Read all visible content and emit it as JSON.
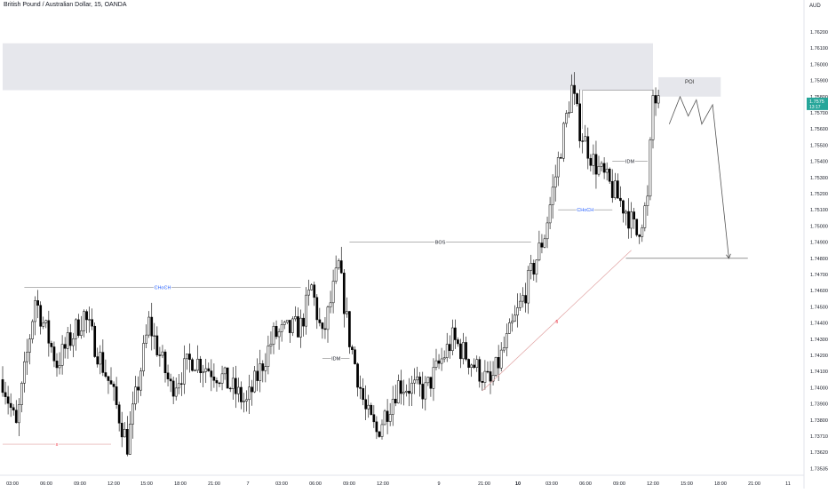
{
  "header": {
    "title": "British Pound / Australian Dollar, 15, OANDA",
    "currency": "AUD"
  },
  "colors": {
    "background": "#ffffff",
    "candle": "#000000",
    "zone": "#e6e7ec",
    "axis_text": "#131722",
    "structure_line": "#888888",
    "choch_label": "#2962ff",
    "fib_line": "#e0a0a0",
    "fib_label": "#f23645",
    "price_tag": "#26a69a",
    "arrow": "#555555"
  },
  "chart_data": {
    "type": "candlestick",
    "symbol": "British Pound / Australian Dollar",
    "timeframe": "15",
    "exchange": "OANDA",
    "ylabel": "AUD",
    "ylim": [
      1.735,
      1.763
    ],
    "y_ticks": [
      "1.76200",
      "1.76100",
      "1.76000",
      "1.75900",
      "1.75800",
      "1.75700",
      "1.75600",
      "1.75500",
      "1.75400",
      "1.75300",
      "1.75200",
      "1.75100",
      "1.75000",
      "1.74900",
      "1.74800",
      "1.74700",
      "1.74600",
      "1.74500",
      "1.74400",
      "1.74300",
      "1.74200",
      "1.74100",
      "1.74000",
      "1.73900",
      "1.73800",
      "1.73710",
      "1.73620",
      "1.73535"
    ],
    "x_ticks": [
      "03:00",
      "06:00",
      "09:00",
      "12:00",
      "15:00",
      "18:00",
      "21:00",
      "7",
      "03:00",
      "06:00",
      "09:00",
      "12:00",
      "9",
      "21:00",
      "10",
      "03:00",
      "06:00",
      "09:00",
      "12:00",
      "15:00",
      "18:00",
      "21:00",
      "11"
    ],
    "x_ticks_bold": [
      false,
      false,
      false,
      false,
      false,
      false,
      false,
      false,
      false,
      false,
      false,
      false,
      false,
      false,
      true,
      false,
      false,
      false,
      false,
      false,
      false,
      false,
      false
    ],
    "current_price_tag": [
      "1.7575",
      "13:17"
    ],
    "anchors": [
      [
        0,
        1.7405
      ],
      [
        5,
        1.7375
      ],
      [
        12,
        1.7455
      ],
      [
        20,
        1.7415
      ],
      [
        30,
        1.7445
      ],
      [
        40,
        1.74
      ],
      [
        46,
        1.7365
      ],
      [
        54,
        1.744
      ],
      [
        62,
        1.74
      ],
      [
        70,
        1.7418
      ],
      [
        80,
        1.7408
      ],
      [
        90,
        1.739
      ],
      [
        100,
        1.7432
      ],
      [
        110,
        1.7438
      ],
      [
        114,
        1.7462
      ],
      [
        118,
        1.743
      ],
      [
        124,
        1.7475
      ],
      [
        128,
        1.743
      ],
      [
        134,
        1.7385
      ],
      [
        138,
        1.7372
      ],
      [
        146,
        1.7402
      ],
      [
        156,
        1.7398
      ],
      [
        166,
        1.743
      ],
      [
        180,
        1.7402
      ],
      [
        192,
        1.7455
      ],
      [
        200,
        1.7495
      ],
      [
        210,
        1.7585
      ],
      [
        213,
        1.756
      ],
      [
        218,
        1.754
      ],
      [
        224,
        1.7525
      ],
      [
        230,
        1.751
      ],
      [
        234,
        1.7495
      ],
      [
        238,
        1.7515
      ],
      [
        240,
        1.758
      ],
      [
        242,
        1.7575
      ]
    ],
    "zones": [
      {
        "label": "",
        "x_from": 0,
        "x_to": 240,
        "y_from": 1.7584,
        "y_to": 1.7613
      },
      {
        "label": "POI",
        "x_from": 242,
        "x_to": 265,
        "y_from": 1.758,
        "y_to": 1.7592
      }
    ],
    "annotations": [
      {
        "label": "CHoCH",
        "kind": "choch",
        "y": 1.7462,
        "x_from": 8,
        "x_to": 110
      },
      {
        "label": "BOS",
        "kind": "structure",
        "y": 1.749,
        "x_from": 128,
        "x_to": 195
      },
      {
        "label": "IDM",
        "kind": "structure",
        "y": 1.7418,
        "x_from": 118,
        "x_to": 128
      },
      {
        "label": "CHoCH",
        "kind": "choch",
        "y": 1.751,
        "x_from": 205,
        "x_to": 225
      },
      {
        "label": "IDM",
        "kind": "structure",
        "y": 1.754,
        "x_from": 225,
        "x_to": 238
      },
      {
        "label": "x",
        "kind": "fib",
        "y": 1.7365,
        "x_from": 0,
        "x_to": 40
      }
    ],
    "structure_top": {
      "y": 1.7584,
      "x_from": 214,
      "x_to": 240
    },
    "fib_line": {
      "label": "fi",
      "from": [
        177,
        1.7398
      ],
      "to": [
        232,
        1.7485
      ]
    },
    "projection": [
      [
        246,
        1.7563
      ],
      [
        250,
        1.758
      ],
      [
        253,
        1.7568
      ],
      [
        256,
        1.7578
      ],
      [
        258,
        1.7563
      ],
      [
        262,
        1.7575
      ],
      [
        268,
        1.748
      ]
    ],
    "support_line": {
      "y": 1.748,
      "x_from": 230,
      "x_to": 275
    }
  }
}
